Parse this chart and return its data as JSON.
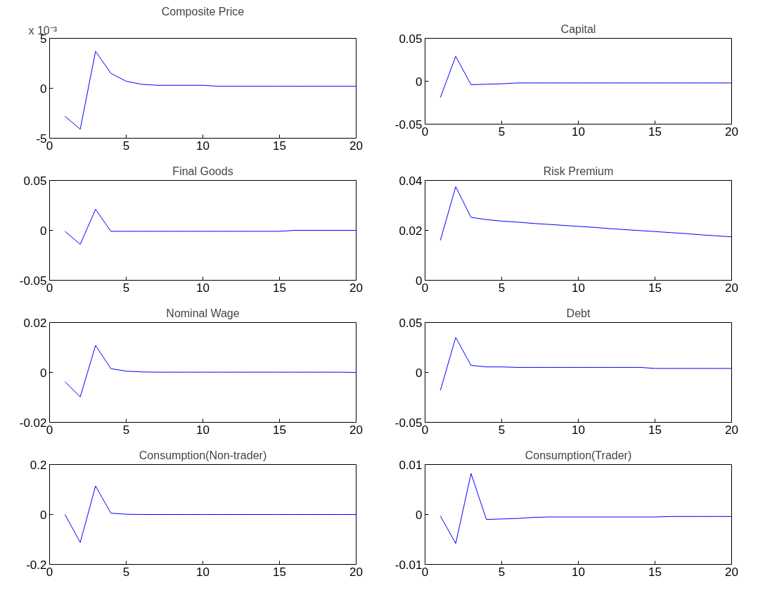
{
  "chart_data": [
    {
      "type": "line",
      "title": "Composite Price",
      "annotations": [
        "x 10⁻³"
      ],
      "x": [
        1,
        2,
        3,
        4,
        5,
        6,
        7,
        8,
        9,
        10,
        11,
        12,
        13,
        14,
        15,
        16,
        17,
        18,
        19,
        20
      ],
      "series": [
        {
          "color": "#0000ff",
          "values": [
            -2.8,
            -4.1,
            3.7,
            1.5,
            0.7,
            0.4,
            0.3,
            0.3,
            0.3,
            0.3,
            0.2,
            0.2,
            0.2,
            0.2,
            0.2,
            0.2,
            0.2,
            0.2,
            0.2,
            0.2
          ]
        }
      ],
      "xlim": [
        0,
        20
      ],
      "xticks": [
        0,
        5,
        10,
        15,
        20
      ],
      "ylim": [
        -5,
        5
      ],
      "yticks": [
        -5,
        0,
        5
      ],
      "grid": false
    },
    {
      "type": "line",
      "title": "Capital",
      "x": [
        1,
        2,
        3,
        4,
        5,
        6,
        7,
        8,
        9,
        10,
        11,
        12,
        13,
        14,
        15,
        16,
        17,
        18,
        19,
        20
      ],
      "series": [
        {
          "color": "#0000ff",
          "values": [
            -0.019,
            0.029,
            -0.004,
            -0.0035,
            -0.003,
            -0.002,
            -0.002,
            -0.002,
            -0.002,
            -0.002,
            -0.002,
            -0.002,
            -0.002,
            -0.002,
            -0.002,
            -0.002,
            -0.002,
            -0.002,
            -0.002,
            -0.002
          ]
        }
      ],
      "xlim": [
        0,
        20
      ],
      "xticks": [
        0,
        5,
        10,
        15,
        20
      ],
      "ylim": [
        -0.05,
        0.05
      ],
      "yticks": [
        -0.05,
        0,
        0.05
      ],
      "grid": false
    },
    {
      "type": "line",
      "title": "Final Goods",
      "x": [
        1,
        2,
        3,
        4,
        5,
        6,
        7,
        8,
        9,
        10,
        11,
        12,
        13,
        14,
        15,
        16,
        17,
        18,
        19,
        20
      ],
      "series": [
        {
          "color": "#0000ff",
          "values": [
            -0.001,
            -0.014,
            0.021,
            -0.001,
            -0.001,
            -0.001,
            -0.001,
            -0.001,
            -0.001,
            -0.001,
            -0.001,
            -0.001,
            -0.001,
            -0.001,
            -0.001,
            0,
            0,
            0,
            0,
            0
          ]
        }
      ],
      "xlim": [
        0,
        20
      ],
      "xticks": [
        0,
        5,
        10,
        15,
        20
      ],
      "ylim": [
        -0.05,
        0.05
      ],
      "yticks": [
        -0.05,
        0,
        0.05
      ],
      "grid": false
    },
    {
      "type": "line",
      "title": "Risk Premium",
      "x": [
        1,
        2,
        3,
        4,
        5,
        6,
        7,
        8,
        9,
        10,
        11,
        12,
        13,
        14,
        15,
        16,
        17,
        18,
        19,
        20
      ],
      "series": [
        {
          "color": "#0000ff",
          "values": [
            0.016,
            0.0375,
            0.0252,
            0.0243,
            0.0237,
            0.0233,
            0.0228,
            0.0224,
            0.022,
            0.0216,
            0.0212,
            0.0207,
            0.0203,
            0.0199,
            0.0195,
            0.0191,
            0.0187,
            0.0182,
            0.0178,
            0.0174
          ]
        }
      ],
      "xlim": [
        0,
        20
      ],
      "xticks": [
        0,
        5,
        10,
        15,
        20
      ],
      "ylim": [
        0,
        0.04
      ],
      "yticks": [
        0,
        0.02,
        0.04
      ],
      "grid": false
    },
    {
      "type": "line",
      "title": "Nominal Wage",
      "x": [
        1,
        2,
        3,
        4,
        5,
        6,
        7,
        8,
        9,
        10,
        11,
        12,
        13,
        14,
        15,
        16,
        17,
        18,
        19,
        20
      ],
      "series": [
        {
          "color": "#0000ff",
          "values": [
            -0.0037,
            -0.0098,
            0.0108,
            0.0015,
            0.0005,
            0.0002,
            0.0001,
            0.0001,
            0.0001,
            0.0001,
            0.0001,
            0.0001,
            0.0001,
            0.0001,
            0.0001,
            0.0001,
            0.0001,
            0.0001,
            0.0001,
            0
          ]
        }
      ],
      "xlim": [
        0,
        20
      ],
      "xticks": [
        0,
        5,
        10,
        15,
        20
      ],
      "ylim": [
        -0.02,
        0.02
      ],
      "yticks": [
        -0.02,
        0,
        0.02
      ],
      "grid": false
    },
    {
      "type": "line",
      "title": "Debt",
      "x": [
        1,
        2,
        3,
        4,
        5,
        6,
        7,
        8,
        9,
        10,
        11,
        12,
        13,
        14,
        15,
        16,
        17,
        18,
        19,
        20
      ],
      "series": [
        {
          "color": "#0000ff",
          "values": [
            -0.018,
            0.035,
            0.007,
            0.0055,
            0.0055,
            0.005,
            0.005,
            0.005,
            0.005,
            0.005,
            0.005,
            0.005,
            0.005,
            0.005,
            0.004,
            0.004,
            0.004,
            0.004,
            0.004,
            0.004
          ]
        }
      ],
      "xlim": [
        0,
        20
      ],
      "xticks": [
        0,
        5,
        10,
        15,
        20
      ],
      "ylim": [
        -0.05,
        0.05
      ],
      "yticks": [
        -0.05,
        0,
        0.05
      ],
      "grid": false
    },
    {
      "type": "line",
      "title": "Consumption(Non-trader)",
      "x": [
        1,
        2,
        3,
        4,
        5,
        6,
        7,
        8,
        9,
        10,
        11,
        12,
        13,
        14,
        15,
        16,
        17,
        18,
        19,
        20
      ],
      "series": [
        {
          "color": "#0000ff",
          "values": [
            0,
            -0.112,
            0.114,
            0.005,
            0.001,
            0,
            0,
            0,
            0,
            0,
            0,
            0,
            0,
            0,
            0,
            0,
            0,
            0,
            0,
            0
          ]
        }
      ],
      "xlim": [
        0,
        20
      ],
      "xticks": [
        0,
        5,
        10,
        15,
        20
      ],
      "ylim": [
        -0.2,
        0.2
      ],
      "yticks": [
        -0.2,
        0,
        0.2
      ],
      "grid": false
    },
    {
      "type": "line",
      "title": "Consumption(Trader)",
      "x": [
        1,
        2,
        3,
        4,
        5,
        6,
        7,
        8,
        9,
        10,
        11,
        12,
        13,
        14,
        15,
        16,
        17,
        18,
        19,
        20
      ],
      "series": [
        {
          "color": "#0000ff",
          "values": [
            -0.0003,
            -0.0058,
            0.0082,
            -0.001,
            -0.0009,
            -0.0008,
            -0.0006,
            -0.0005,
            -0.0005,
            -0.0005,
            -0.0005,
            -0.0005,
            -0.0005,
            -0.0005,
            -0.0005,
            -0.0004,
            -0.0004,
            -0.0004,
            -0.0004,
            -0.0004
          ]
        }
      ],
      "xlim": [
        0,
        20
      ],
      "xticks": [
        0,
        5,
        10,
        15,
        20
      ],
      "ylim": [
        -0.01,
        0.01
      ],
      "yticks": [
        -0.01,
        0,
        0.01
      ],
      "grid": false
    }
  ]
}
